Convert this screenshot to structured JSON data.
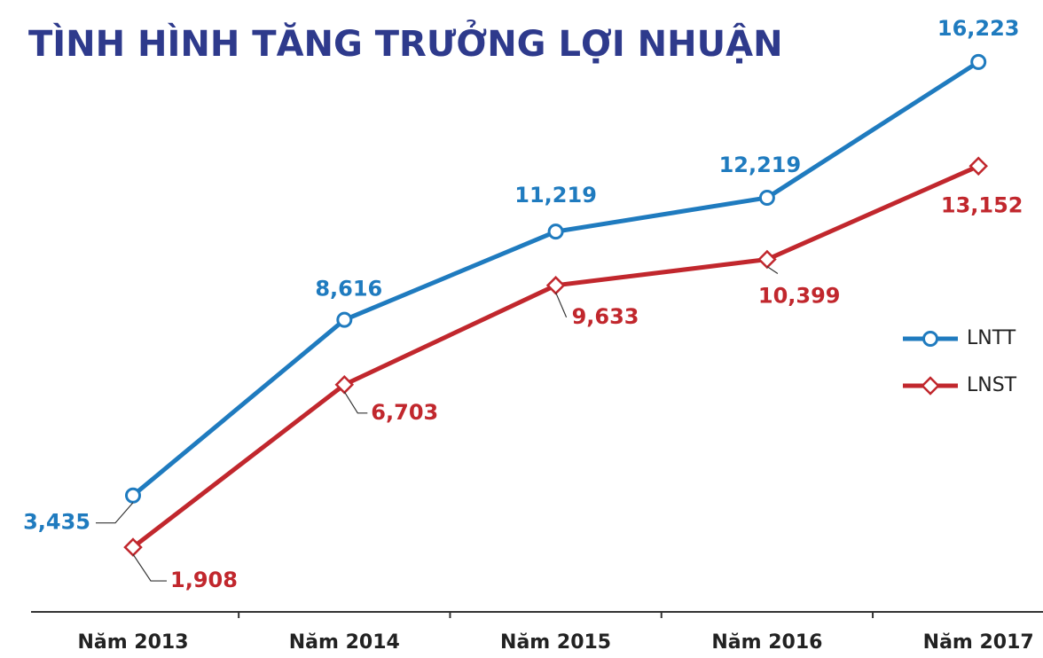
{
  "chart_data": {
    "type": "line",
    "title": "TÌNH HÌNH TĂNG TRƯỞNG LỢI NHUẬN",
    "categories": [
      "Năm 2013",
      "Năm 2014",
      "Năm 2015",
      "Năm 2016",
      "Năm 2017"
    ],
    "series": [
      {
        "name": "LNTT",
        "color": "#1f7bbf",
        "marker": "circle",
        "values": [
          3435,
          8616,
          11219,
          12219,
          16223
        ],
        "value_labels": [
          "3,435",
          "8,616",
          "11,219",
          "12,219",
          "16,223"
        ]
      },
      {
        "name": "LNST",
        "color": "#c1272d",
        "marker": "diamond",
        "values": [
          1908,
          6703,
          9633,
          10399,
          13152
        ],
        "value_labels": [
          "1,908",
          "6,703",
          "9,633",
          "10,399",
          "13,152"
        ]
      }
    ],
    "ylim": [
      0,
      18000
    ],
    "legend": "right"
  }
}
